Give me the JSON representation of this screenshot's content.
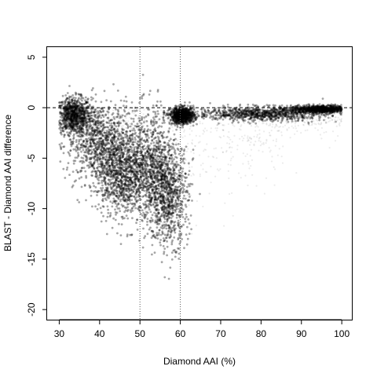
{
  "chart_data": {
    "type": "scatter",
    "title": "",
    "xlabel": "Diamond AAI (%)",
    "ylabel": "BLAST - Diamond AAI difference",
    "xlim": [
      27,
      102.5
    ],
    "ylim": [
      -21,
      6
    ],
    "x_ticks": [
      30,
      40,
      50,
      60,
      70,
      80,
      90,
      100
    ],
    "y_ticks": [
      -20,
      -15,
      -10,
      -5,
      0,
      5
    ],
    "reference_lines": {
      "horizontal_dashed_y": 0,
      "vertical_dotted_x": [
        50,
        60
      ]
    },
    "grid": false,
    "legend": "none",
    "point_color": "#000000",
    "density_regions": [
      {
        "x_center": 33.5,
        "y_center": -0.8,
        "x_spread": 2.2,
        "y_spread": 0.9
      },
      {
        "x_center": 40,
        "y_center": -3.5,
        "x_spread": 4,
        "y_spread": 2.0
      },
      {
        "x_center": 45,
        "y_center": -6.5,
        "x_spread": 3,
        "y_spread": 2.0
      },
      {
        "x_center": 52,
        "y_center": -6,
        "x_spread": 3,
        "y_spread": 2.8
      },
      {
        "x_center": 57,
        "y_center": -8.5,
        "x_spread": 2.5,
        "y_spread": 2.5
      },
      {
        "x_center": 60.5,
        "y_center": -0.8,
        "x_spread": 1.5,
        "y_spread": 0.4
      },
      {
        "x_center": 80,
        "y_center": -0.6,
        "x_spread": 8,
        "y_spread": 0.35
      },
      {
        "x_center": 95,
        "y_center": -0.15,
        "x_spread": 4,
        "y_spread": 0.2
      }
    ]
  },
  "axes": {
    "x_tick_labels": [
      "30",
      "40",
      "50",
      "60",
      "70",
      "80",
      "90",
      "100"
    ],
    "y_tick_labels": [
      "-20",
      "-15",
      "-10",
      "-5",
      "0",
      "5"
    ]
  }
}
